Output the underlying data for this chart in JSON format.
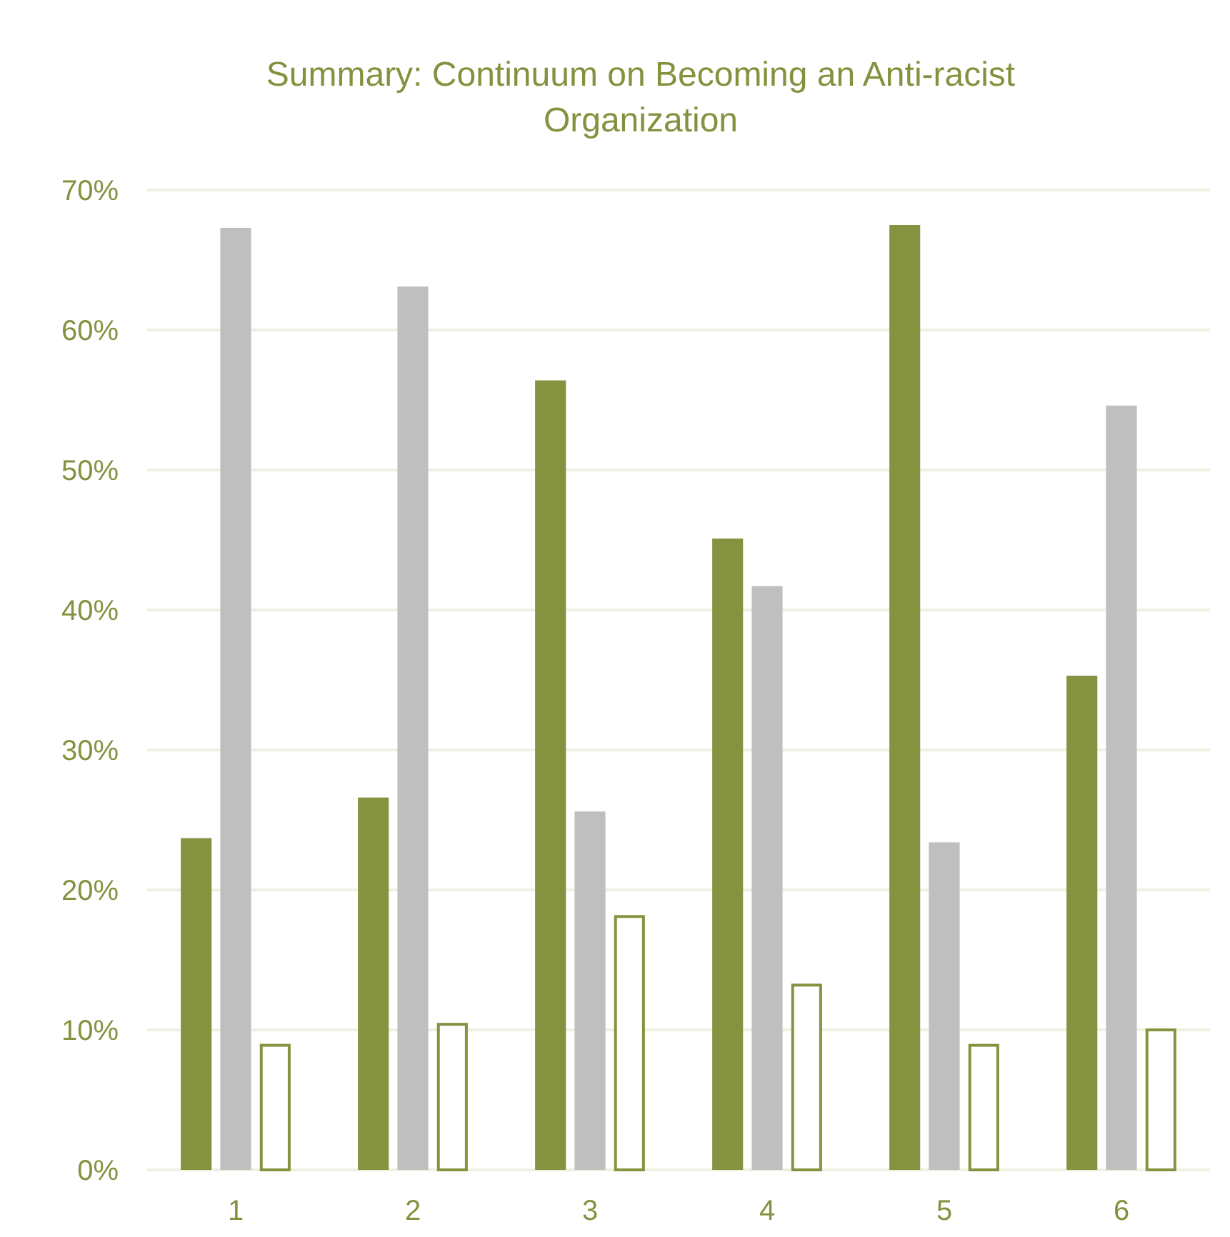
{
  "chart_data": {
    "type": "bar",
    "title": "Summary: Continuum on Becoming an Anti-racist Organization",
    "categories": [
      "1",
      "2",
      "3",
      "4",
      "5",
      "6"
    ],
    "series": [
      {
        "color": "#859341",
        "values": [
          23.7,
          26.6,
          56.4,
          45.1,
          67.5,
          35.3
        ]
      },
      {
        "color": "#bfbfbf",
        "values": [
          67.3,
          63.1,
          25.6,
          41.7,
          23.4,
          54.6
        ]
      },
      {
        "color": "#ffffff",
        "values": [
          9.0,
          10.5,
          18.2,
          13.3,
          9.0,
          10.1
        ]
      }
    ],
    "ylim": [
      0,
      70
    ],
    "yticks": [
      {
        "value": 0,
        "label": "0%"
      },
      {
        "value": 10,
        "label": "10%"
      },
      {
        "value": 20,
        "label": "20%"
      },
      {
        "value": 30,
        "label": "30%"
      },
      {
        "value": 40,
        "label": "40%"
      },
      {
        "value": 50,
        "label": "50%"
      },
      {
        "value": 60,
        "label": "60%"
      },
      {
        "value": 70,
        "label": "70%"
      }
    ],
    "grid": "y"
  }
}
